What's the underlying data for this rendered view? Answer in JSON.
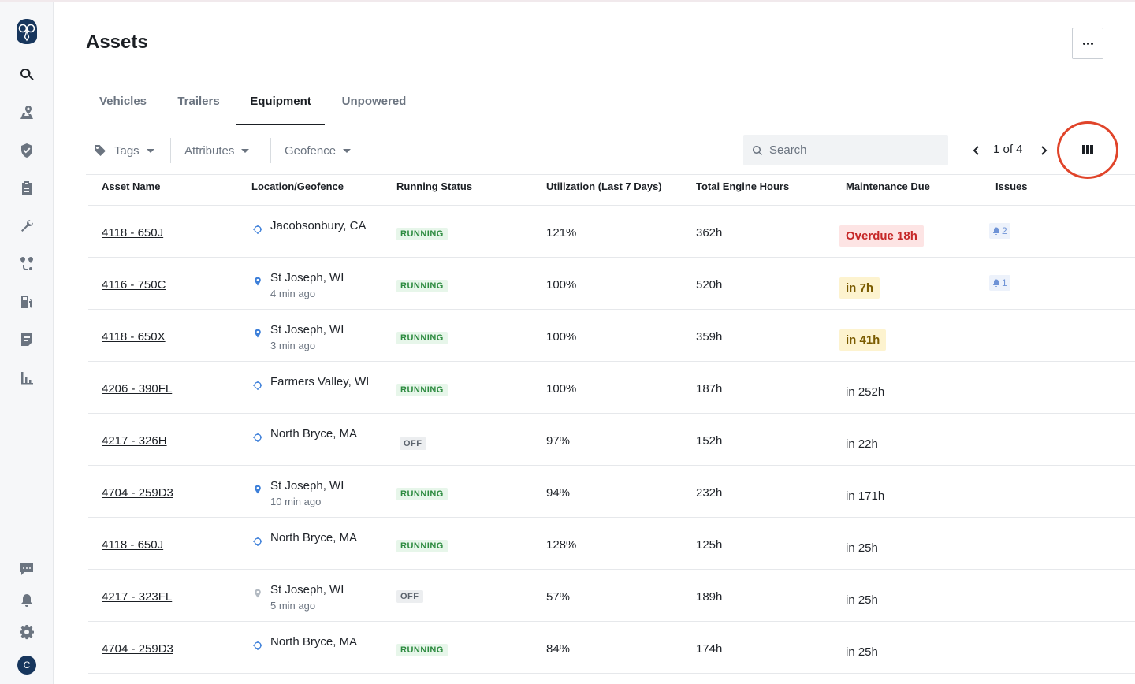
{
  "app": {
    "logo_icon": "owl-logo-icon",
    "nav_icons": [
      "search-icon",
      "map-pin-icon",
      "shield-icon",
      "clipboard-icon",
      "wrench-icon",
      "routes-icon",
      "fuel-icon",
      "document-icon",
      "bar-chart-icon"
    ],
    "bottom_icons": [
      "chat-icon",
      "bell-icon",
      "gear-icon"
    ],
    "avatar_initial": "C"
  },
  "page": {
    "title": "Assets"
  },
  "tabs": [
    {
      "label": "Vehicles",
      "active": false
    },
    {
      "label": "Trailers",
      "active": false
    },
    {
      "label": "Equipment",
      "active": true
    },
    {
      "label": "Unpowered",
      "active": false
    }
  ],
  "filters": {
    "tags": "Tags",
    "attributes": "Attributes",
    "geofence": "Geofence",
    "search_placeholder": "Search",
    "pagination": "1 of 4"
  },
  "table": {
    "columns": [
      "Asset Name",
      "Location/Geofence",
      "Running Status",
      "Utilization (Last 7 Days)",
      "Total Engine Hours",
      "Maintenance Due",
      "Issues"
    ],
    "rows": [
      {
        "name": "4118 - 650J",
        "location": "Jacobsonbury, CA",
        "location_type": "geofence",
        "location_time": "",
        "status": "RUNNING",
        "utilization": "121%",
        "hours": "362h",
        "maintenance": "Overdue 18h",
        "maintenance_level": "overdue",
        "issues": "2"
      },
      {
        "name": "4116 - 750C",
        "location": "St Joseph, WI",
        "location_type": "pin",
        "location_time": "4 min ago",
        "status": "RUNNING",
        "utilization": "100%",
        "hours": "520h",
        "maintenance": "in 7h",
        "maintenance_level": "soon",
        "issues": "1"
      },
      {
        "name": "4118 - 650X",
        "location": "St Joseph, WI",
        "location_type": "pin",
        "location_time": "3 min ago",
        "status": "RUNNING",
        "utilization": "100%",
        "hours": "359h",
        "maintenance": "in 41h",
        "maintenance_level": "soon",
        "issues": ""
      },
      {
        "name": "4206 - 390FL",
        "location": "Farmers Valley, WI",
        "location_type": "geofence",
        "location_time": "",
        "status": "RUNNING",
        "utilization": "100%",
        "hours": "187h",
        "maintenance": "in 252h",
        "maintenance_level": "normal",
        "issues": ""
      },
      {
        "name": "4217 - 326H",
        "location": "North Bryce, MA",
        "location_type": "geofence",
        "location_time": "",
        "status": "OFF",
        "utilization": "97%",
        "hours": "152h",
        "maintenance": "in 22h",
        "maintenance_level": "normal",
        "issues": ""
      },
      {
        "name": "4704 - 259D3",
        "location": "St Joseph, WI",
        "location_type": "pin",
        "location_time": "10 min ago",
        "status": "RUNNING",
        "utilization": "94%",
        "hours": "232h",
        "maintenance": "in 171h",
        "maintenance_level": "normal",
        "issues": ""
      },
      {
        "name": "4118 - 650J",
        "location": "North Bryce, MA",
        "location_type": "geofence",
        "location_time": "",
        "status": "RUNNING",
        "utilization": "128%",
        "hours": "125h",
        "maintenance": "in 25h",
        "maintenance_level": "normal",
        "issues": ""
      },
      {
        "name": "4217 - 323FL",
        "location": "St Joseph, WI",
        "location_type": "pin-gray",
        "location_time": "5 min ago",
        "status": "OFF",
        "utilization": "57%",
        "hours": "189h",
        "maintenance": "in 25h",
        "maintenance_level": "normal",
        "issues": ""
      },
      {
        "name": "4704 - 259D3",
        "location": "North Bryce, MA",
        "location_type": "geofence",
        "location_time": "",
        "status": "RUNNING",
        "utilization": "84%",
        "hours": "174h",
        "maintenance": "in 25h",
        "maintenance_level": "normal",
        "issues": ""
      }
    ]
  },
  "colors": {
    "accent_dark": "#1b1f24",
    "running_bg": "#e7f6ea",
    "running_text": "#2b8a3e",
    "overdue_bg": "#fde4e4",
    "overdue_text": "#c62828",
    "soon_bg": "#fdf3cf",
    "highlight_circle": "#e0442a",
    "location_pin": "#3d7fd9"
  }
}
